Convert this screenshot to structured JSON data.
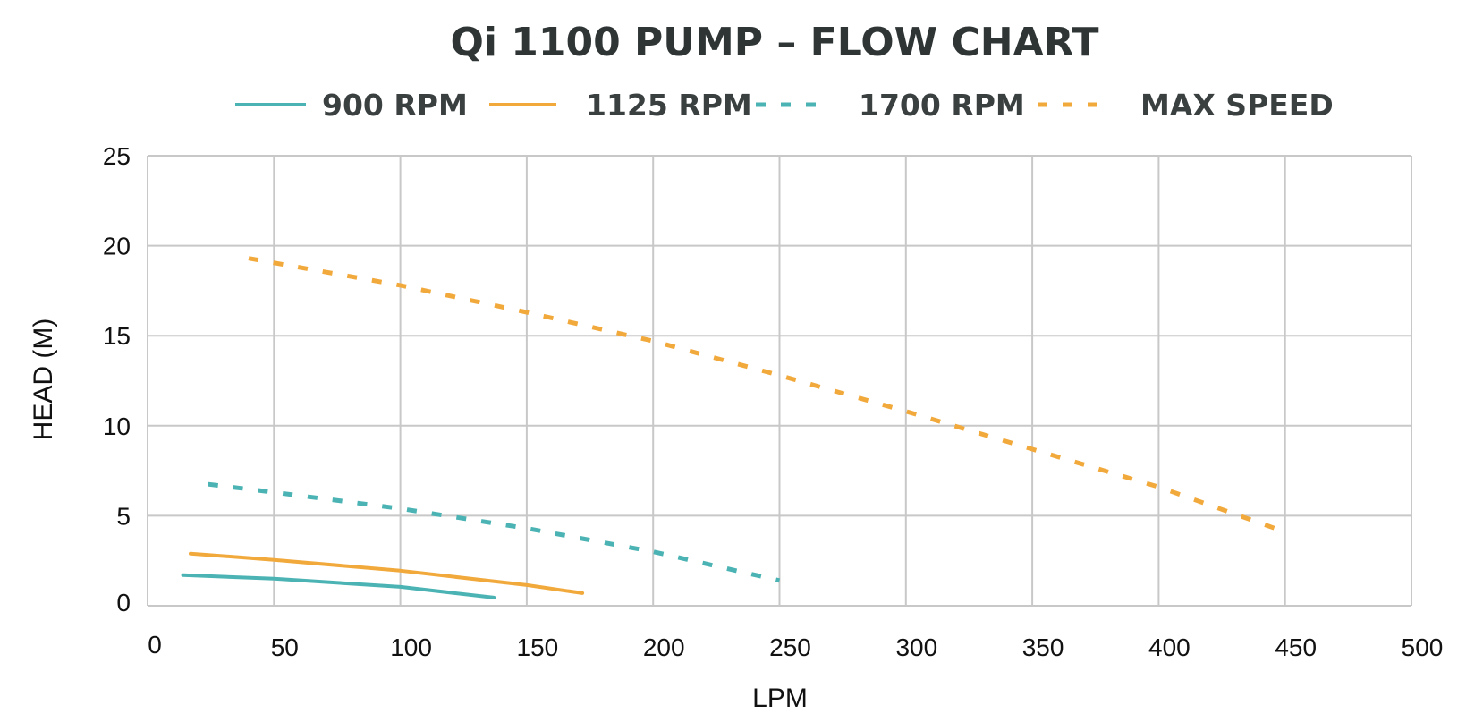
{
  "chart_data": {
    "type": "line",
    "title": "Qi 1100 PUMP – FLOW CHART",
    "xlabel": "LPM",
    "ylabel": "HEAD (M)",
    "xlim": [
      0,
      500
    ],
    "ylim": [
      0,
      25
    ],
    "x_ticks": [
      0,
      50,
      100,
      150,
      200,
      250,
      300,
      350,
      400,
      450,
      500
    ],
    "y_ticks": [
      0,
      5,
      10,
      15,
      20,
      25
    ],
    "grid": true,
    "legend_position": "top",
    "series": [
      {
        "name": "900 RPM",
        "color": "#4bb3b3",
        "style": "solid",
        "x": [
          14,
          50,
          100,
          137
        ],
        "y": [
          1.7,
          1.5,
          1.05,
          0.45
        ]
      },
      {
        "name": "1125 RPM",
        "color": "#f2a93b",
        "style": "solid",
        "x": [
          17,
          50,
          100,
          150,
          172
        ],
        "y": [
          2.9,
          2.55,
          1.95,
          1.15,
          0.7
        ]
      },
      {
        "name": "1700 RPM",
        "color": "#4bb3b3",
        "style": "dashed",
        "x": [
          24,
          50,
          100,
          150,
          200,
          250
        ],
        "y": [
          6.75,
          6.3,
          5.4,
          4.3,
          3.0,
          1.4
        ]
      },
      {
        "name": "MAX SPEED",
        "color": "#f2a93b",
        "style": "dashed",
        "x": [
          40,
          100,
          150,
          200,
          250,
          300,
          350,
          400,
          450
        ],
        "y": [
          19.3,
          17.8,
          16.3,
          14.7,
          12.8,
          10.8,
          8.7,
          6.6,
          4.1
        ]
      }
    ]
  }
}
